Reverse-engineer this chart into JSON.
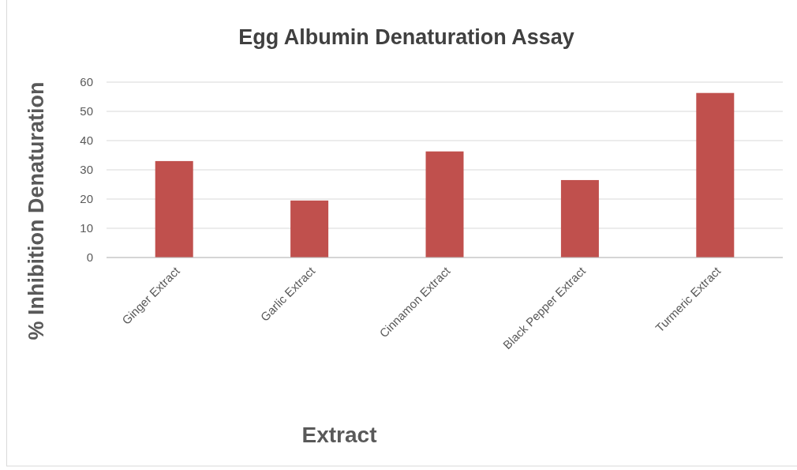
{
  "chart_data": {
    "type": "bar",
    "title": "Egg Albumin Denaturation Assay",
    "xlabel": "Extract",
    "ylabel": "% Inhibition Denaturation",
    "categories": [
      "Ginger Extract",
      "Garlic Extract",
      "Cinnamon Extract",
      "Black Pepper Extract",
      "Turmeric Extract"
    ],
    "values": [
      33,
      19.5,
      36.3,
      26.5,
      56.3
    ],
    "color": "#c0504d",
    "ylim": [
      0,
      60
    ],
    "yticks": [
      0,
      10,
      20,
      30,
      40,
      50,
      60
    ],
    "grid": "y"
  }
}
